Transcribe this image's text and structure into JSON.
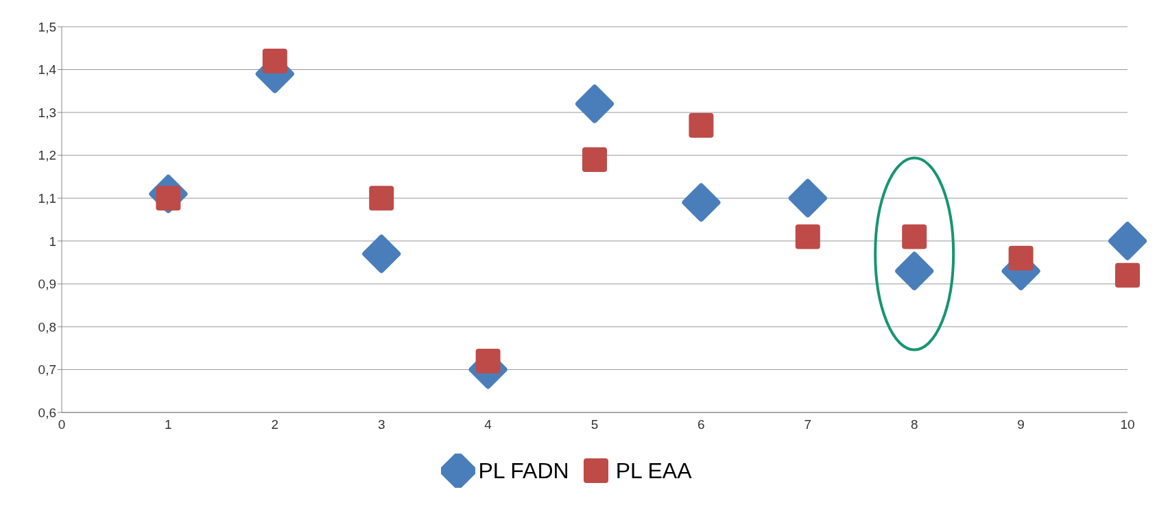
{
  "chart_data": {
    "type": "scatter",
    "x": [
      1,
      2,
      3,
      4,
      5,
      6,
      7,
      8,
      9,
      10
    ],
    "series": [
      {
        "name": "PL FADN",
        "color": "#4a7ebb",
        "marker": "diamond",
        "values": [
          1.11,
          1.39,
          0.97,
          0.7,
          1.32,
          1.09,
          1.1,
          0.93,
          0.93,
          1.0
        ]
      },
      {
        "name": "PL EAA",
        "color": "#be4b48",
        "marker": "square",
        "values": [
          1.1,
          1.42,
          1.1,
          0.72,
          1.19,
          1.27,
          1.01,
          1.01,
          0.96,
          0.92
        ]
      }
    ],
    "xlim": [
      0,
      10
    ],
    "xticks": [
      0,
      1,
      2,
      3,
      4,
      5,
      6,
      7,
      8,
      9,
      10
    ],
    "ylim": [
      0.6,
      1.5
    ],
    "yticks": [
      {
        "value": 0.6,
        "label": "0,6"
      },
      {
        "value": 0.7,
        "label": "0,7"
      },
      {
        "value": 0.8,
        "label": "0,8"
      },
      {
        "value": 0.9,
        "label": "0,9"
      },
      1,
      {
        "value": 1.1,
        "label": "1,1"
      },
      {
        "value": 1.2,
        "label": "1,2"
      },
      {
        "value": 1.3,
        "label": "1,3"
      },
      {
        "value": 1.4,
        "label": "1,4"
      },
      {
        "value": 1.5,
        "label": "1,5"
      }
    ],
    "grid": "y",
    "legend": "bottom"
  }
}
